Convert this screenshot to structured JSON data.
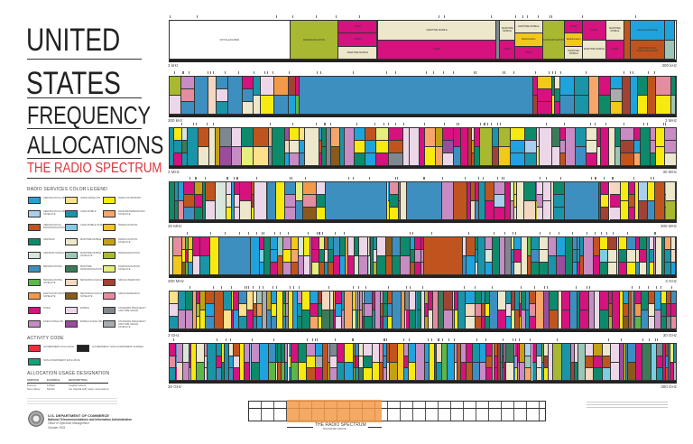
{
  "title": {
    "line1": "UNITED",
    "line2": "STATES",
    "line3": "FREQUENCY",
    "line4": "ALLOCATIONS",
    "subtitle": "THE RADIO SPECTRUM"
  },
  "legend": {
    "heading": "RADIO SERVICES COLOR LEGEND",
    "columns": [
      [
        {
          "label": "AERONAUTICAL MOBILE",
          "color": "#1fa3dc"
        },
        {
          "label": "AERONAUTICAL MOBILE SATELLITE",
          "color": "#a8cfee"
        },
        {
          "label": "AERONAUTICAL RADIONAVIGATION",
          "color": "#c0541f"
        },
        {
          "label": "AMATEUR",
          "color": "#0d8a6a"
        },
        {
          "label": "AMATEUR SATELLITE",
          "color": "#d8e6dc"
        },
        {
          "label": "BROADCASTING",
          "color": "#3d8fc0"
        },
        {
          "label": "BROADCASTING SATELLITE",
          "color": "#5bb848"
        },
        {
          "label": "EARTH EXPLORATION SATELLITE",
          "color": "#f29a4a"
        },
        {
          "label": "FIXED",
          "color": "#d5127e"
        },
        {
          "label": "FIXED SATELLITE",
          "color": "#c78cc3"
        }
      ],
      [
        {
          "label": "INTER-SATELLITE",
          "color": "#fde08a"
        },
        {
          "label": "LAND MOBILE",
          "color": "#1a95a8"
        },
        {
          "label": "LAND MOBILE SATELLITE",
          "color": "#7ccfe0"
        },
        {
          "label": "MARITIME MOBILE",
          "color": "#ede7cb"
        },
        {
          "label": "MARITIME MOBILE SATELLITE",
          "color": "#9cc7b6"
        },
        {
          "label": "MARITIME RADIONAVIGATION",
          "color": "#3c7a5a"
        },
        {
          "label": "METEOROLOGICAL AIDS",
          "color": "#f3d7c0"
        },
        {
          "label": "METEOROLOGICAL SATELLITE",
          "color": "#8a5a1c"
        },
        {
          "label": "MOBILE",
          "color": "#ecd7e8"
        },
        {
          "label": "MOBILE SATELLITE",
          "color": "#9a4d9c"
        }
      ],
      [
        {
          "label": "RADIO ASTRONOMY",
          "color": "#f6ea10"
        },
        {
          "label": "RADIODETERMINATION SATELLITE",
          "color": "#f7a66b"
        },
        {
          "label": "RADIOLOCATION",
          "color": "#f2c81b"
        },
        {
          "label": "RADIOLOCATION SATELLITE",
          "color": "#c3a115"
        },
        {
          "label": "RADIONAVIGATION",
          "color": "#a8b830"
        },
        {
          "label": "RADIONAVIGATION SATELLITE",
          "color": "#e6ee7c"
        },
        {
          "label": "SPACE OPERATION",
          "color": "#a24235"
        },
        {
          "label": "SPACE RESEARCH",
          "color": "#e48ca0"
        },
        {
          "label": "STANDARD FREQUENCY AND TIME SIGNAL",
          "color": "#7f8890"
        },
        {
          "label": "STANDARD FREQUENCY AND TIME SIGNAL SATELLITE",
          "color": "#a9acae"
        }
      ]
    ]
  },
  "activity": {
    "heading": "ACTIVITY CODE",
    "items": [
      {
        "label": "GOVERNMENT EXCLUSIVE",
        "color": "#e0343c"
      },
      {
        "label": "GOVERNMENT/ NON-GOVERNMENT SHARED",
        "color": "#222222"
      },
      {
        "label": "NON-GOVERNMENT EXCLUSIVE",
        "color": "#11a27a"
      }
    ]
  },
  "usage": {
    "heading": "ALLOCATION USAGE DESIGNATION",
    "headers": [
      "SERVICE",
      "EXAMPLE",
      "DESCRIPTION"
    ],
    "rows": [
      [
        "Primary",
        "FIXED",
        "Capital Letters"
      ],
      [
        "Secondary",
        "Mobile",
        "1st Capital with lower case letters"
      ]
    ]
  },
  "agency": {
    "dept": "U.S. DEPARTMENT OF COMMERCE",
    "ntia": "National Telecommunications and Information Administration",
    "office": "Office of Spectrum Management",
    "date": "October 2003"
  },
  "bands": [
    {
      "start": "3 kHz",
      "end": "300 kHz"
    },
    {
      "start": "300 kHz",
      "end": "3 MHz"
    },
    {
      "start": "3 MHz",
      "end": "30 MHz"
    },
    {
      "start": "30 MHz",
      "end": "300 MHz"
    },
    {
      "start": "300 MHz",
      "end": "3 GHz"
    },
    {
      "start": "3 GHz",
      "end": "30 GHz"
    },
    {
      "start": "30 GHz",
      "end": "300 GHz"
    }
  ],
  "band1_allocations": [
    {
      "from_khz": 3,
      "to_khz": 9,
      "services": [
        [
          "NOT ALLOCATED",
          "#ffffff"
        ]
      ]
    },
    {
      "from_khz": 9,
      "to_khz": 14,
      "services": [
        [
          "RADIONAVIGATION",
          "#a8b830"
        ]
      ]
    },
    {
      "from_khz": 14,
      "to_khz": 19.95,
      "services": [
        [
          "FIXED",
          "#d5127e"
        ],
        [
          "FIXED",
          "#d5127e"
        ],
        [
          "MARITIME MOBILE",
          "#ede7cb"
        ]
      ]
    },
    {
      "from_khz": 19.95,
      "to_khz": 20.05,
      "services": [
        [
          "",
          "#7f8890"
        ]
      ]
    },
    {
      "from_khz": 20.05,
      "to_khz": 59,
      "services": [
        [
          "MARITIME MOBILE",
          "#ede7cb"
        ],
        [
          "FIXED",
          "#d5127e"
        ]
      ]
    },
    {
      "from_khz": 59,
      "to_khz": 61,
      "services": [
        [
          "",
          "#7f8890"
        ]
      ]
    },
    {
      "from_khz": 61,
      "to_khz": 70,
      "services": [
        [
          "MARITIME MOBILE",
          "#ede7cb"
        ],
        [
          "FIXED",
          "#d5127e"
        ]
      ]
    },
    {
      "from_khz": 70,
      "to_khz": 90,
      "services": [
        [
          "MARITIME MOBILE",
          "#ede7cb"
        ],
        [
          "Radiolocation",
          "#f2c81b"
        ],
        [
          "FIXED",
          "#d5127e"
        ]
      ]
    },
    {
      "from_khz": 90,
      "to_khz": 110,
      "services": [
        [
          "RADIONAVIGATION",
          "#a8b830"
        ]
      ]
    },
    {
      "from_khz": 110,
      "to_khz": 130,
      "services": [
        [
          "FIXED",
          "#d5127e"
        ],
        [
          "Radiolocation",
          "#f2c81b"
        ],
        [
          "MARITIME MOBILE",
          "#ede7cb"
        ]
      ]
    },
    {
      "from_khz": 130,
      "to_khz": 160,
      "services": [
        [
          "FIXED",
          "#d5127e"
        ],
        [
          "MARITIME MOBILE",
          "#ede7cb"
        ]
      ]
    },
    {
      "from_khz": 160,
      "to_khz": 190,
      "services": [
        [
          "MARITIME MOBILE",
          "#ede7cb"
        ],
        [
          "FIXED",
          "#d5127e"
        ]
      ]
    },
    {
      "from_khz": 190,
      "to_khz": 200,
      "services": [
        [
          "",
          "#c0541f"
        ]
      ]
    },
    {
      "from_khz": 200,
      "to_khz": 275,
      "services": [
        [
          "Aeronautical Mobile",
          "#1fa3dc"
        ],
        [
          "AERONAUTICAL RADIONAVIGATION",
          "#c0541f"
        ]
      ]
    },
    {
      "from_khz": 275,
      "to_khz": 300,
      "services": [
        [
          "",
          "#1fa3dc"
        ],
        [
          "",
          "#9cc7b6"
        ]
      ]
    }
  ],
  "magnified": {
    "label": "THE RADIO SPECTRUM",
    "sublabel": "MAGNIFIED ABOVE",
    "highlight": "#f29a4a"
  }
}
